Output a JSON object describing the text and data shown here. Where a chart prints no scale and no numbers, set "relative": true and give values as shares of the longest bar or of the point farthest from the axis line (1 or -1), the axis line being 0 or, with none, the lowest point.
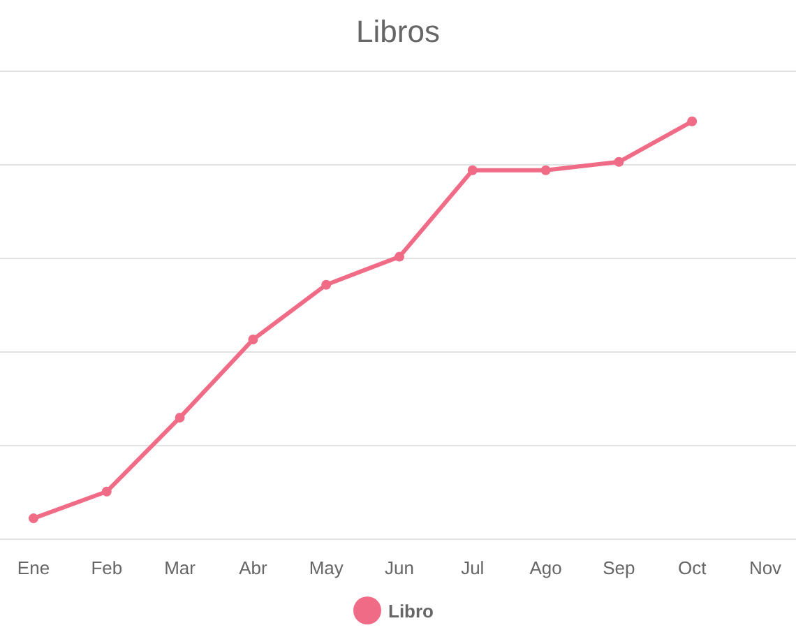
{
  "chart_data": {
    "type": "line",
    "title": "Libros",
    "relative": true,
    "grid": "y",
    "legend": "bottom",
    "marker": "circle",
    "line_style": "solid",
    "categories": [
      "Ene",
      "Feb",
      "Mar",
      "Abr",
      "May",
      "Jun",
      "Jul",
      "Ago",
      "Sep",
      "Oct",
      "Nov"
    ],
    "series": [
      {
        "name": "Libro",
        "color": "#ef6b86",
        "values": [
          0.05,
          0.114,
          0.291,
          0.478,
          0.609,
          0.676,
          0.883,
          0.883,
          0.903,
          1,
          null
        ]
      }
    ]
  }
}
